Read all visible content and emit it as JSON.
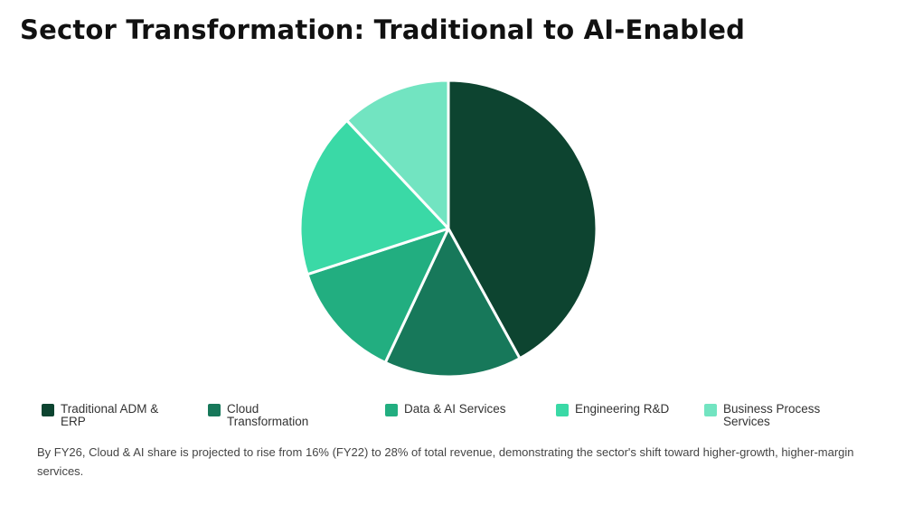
{
  "title": "Sector Transformation: Traditional to AI-Enabled",
  "chart_data": {
    "type": "pie",
    "title": "Sector Transformation: Traditional to AI-Enabled",
    "categories": [
      "Traditional ADM & ERP",
      "Cloud Transformation",
      "Data & AI Services",
      "Engineering R&D",
      "Business Process Services"
    ],
    "values": [
      42,
      15,
      13,
      18,
      12
    ],
    "colors": [
      "#0D4430",
      "#17785A",
      "#22AE80",
      "#3AD9A6",
      "#72E4C1"
    ],
    "start_angle": "12 o'clock, clockwise",
    "legend_position": "bottom",
    "annotation": "By FY26, Cloud & AI share is projected to rise from 16% (FY22) to 28% of total revenue, demonstrating the sector's shift toward higher-growth, higher-margin services."
  },
  "legend": [
    {
      "label": "Traditional ADM & ERP",
      "color": "#0D4430"
    },
    {
      "label": "Cloud Transformation",
      "color": "#17785A"
    },
    {
      "label": "Data & AI Services",
      "color": "#22AE80"
    },
    {
      "label": "Engineering R&D",
      "color": "#3AD9A6"
    },
    {
      "label": "Business Process Services",
      "color": "#72E4C1"
    }
  ],
  "footnote": "By FY26, Cloud & AI share is projected to rise from 16% (FY22) to 28% of total revenue, demonstrating the sector's shift toward higher-growth, higher-margin services."
}
